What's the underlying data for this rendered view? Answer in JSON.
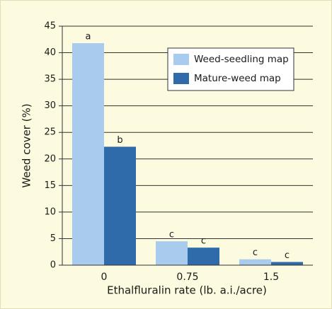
{
  "chart_data": {
    "type": "bar",
    "categories": [
      "0",
      "0.75",
      "1.5"
    ],
    "series": [
      {
        "name": "Weed-seedling map",
        "color": "#a9cbee",
        "values": [
          41.8,
          4.5,
          1.1
        ],
        "labels": [
          "a",
          "c",
          "c"
        ]
      },
      {
        "name": "Mature-weed map",
        "color": "#2f6aab",
        "values": [
          22.3,
          3.3,
          0.6
        ],
        "labels": [
          "b",
          "c",
          "c"
        ]
      }
    ],
    "xlabel": "Ethalfluralin rate (lb. a.i./acre)",
    "ylabel": "Weed cover (%)",
    "ylim": [
      0,
      45
    ],
    "yticks": [
      0,
      5,
      10,
      15,
      20,
      25,
      30,
      35,
      40,
      45
    ],
    "grid": true,
    "legend": "upper right"
  }
}
